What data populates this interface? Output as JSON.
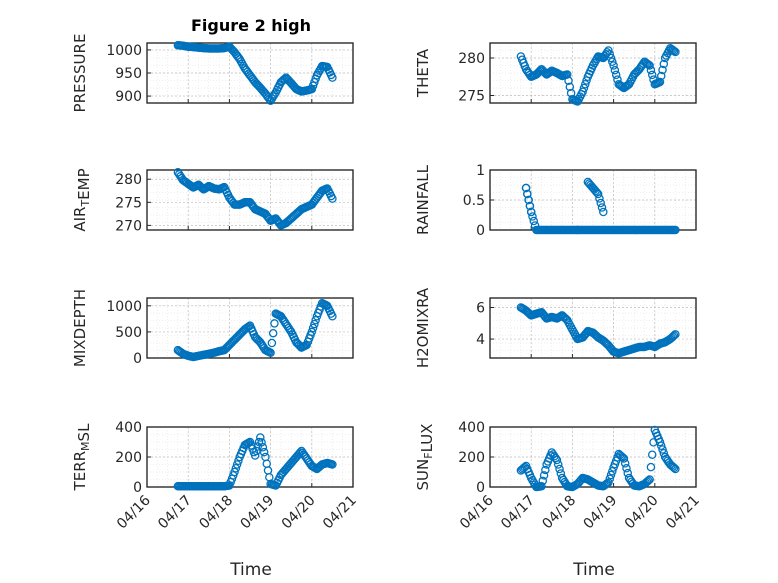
{
  "figure": {
    "title": "Figure 2 high",
    "marker_color": "#0072BD",
    "xlabel": "Time",
    "date_ticks": [
      "04/16",
      "04/17",
      "04/18",
      "04/19",
      "04/20",
      "04/21"
    ]
  },
  "chart_data": [
    {
      "type": "scatter",
      "ylabel": "PRESSURE",
      "ylim": [
        885,
        1015
      ],
      "yticks": [
        900,
        950,
        1000
      ],
      "xlim": [
        "04/16",
        "04/21"
      ],
      "grid": true,
      "x": [
        "2020-04-16T18:00",
        "2020-04-16T21:00",
        "2020-04-17T00:00",
        "2020-04-17T03:00",
        "2020-04-17T06:00",
        "2020-04-17T09:00",
        "2020-04-17T12:00",
        "2020-04-17T15:00",
        "2020-04-17T18:00",
        "2020-04-17T21:00",
        "2020-04-18T00:00",
        "2020-04-18T03:00",
        "2020-04-18T06:00",
        "2020-04-18T09:00",
        "2020-04-18T12:00",
        "2020-04-18T15:00",
        "2020-04-18T18:00",
        "2020-04-18T21:00",
        "2020-04-19T00:00",
        "2020-04-19T03:00",
        "2020-04-19T06:00",
        "2020-04-19T09:00",
        "2020-04-19T12:00",
        "2020-04-19T15:00",
        "2020-04-19T18:00",
        "2020-04-19T21:00",
        "2020-04-20T00:00",
        "2020-04-20T03:00",
        "2020-04-20T06:00",
        "2020-04-20T09:00",
        "2020-04-20T12:00"
      ],
      "y": [
        1010,
        1009,
        1007,
        1006,
        1005,
        1004,
        1003,
        1003,
        1003,
        1004,
        1007,
        995,
        980,
        960,
        945,
        930,
        918,
        905,
        890,
        908,
        930,
        940,
        928,
        915,
        910,
        912,
        915,
        945,
        965,
        963,
        940
      ]
    },
    {
      "type": "scatter",
      "ylabel": "THETA",
      "ylim": [
        274,
        282
      ],
      "yticks": [
        275,
        280
      ],
      "xlim": [
        "04/16",
        "04/21"
      ],
      "grid": true,
      "x": [
        "2020-04-16T18:00",
        "2020-04-16T21:00",
        "2020-04-17T00:00",
        "2020-04-17T03:00",
        "2020-04-17T06:00",
        "2020-04-17T09:00",
        "2020-04-17T12:00",
        "2020-04-17T15:00",
        "2020-04-17T18:00",
        "2020-04-17T21:00",
        "2020-04-18T00:00",
        "2020-04-18T03:00",
        "2020-04-18T06:00",
        "2020-04-18T09:00",
        "2020-04-18T12:00",
        "2020-04-18T15:00",
        "2020-04-18T18:00",
        "2020-04-18T21:00",
        "2020-04-19T00:00",
        "2020-04-19T03:00",
        "2020-04-19T06:00",
        "2020-04-19T09:00",
        "2020-04-19T12:00",
        "2020-04-19T15:00",
        "2020-04-19T18:00",
        "2020-04-19T21:00",
        "2020-04-20T00:00",
        "2020-04-20T03:00",
        "2020-04-20T06:00",
        "2020-04-20T09:00",
        "2020-04-20T12:00"
      ],
      "y": [
        280.2,
        278.5,
        277.5,
        277.8,
        278.5,
        277.8,
        278.3,
        278.0,
        277.6,
        277.8,
        274.5,
        274.2,
        275.5,
        277.5,
        279.0,
        280.2,
        280.0,
        281.0,
        279.0,
        276.5,
        276.0,
        276.5,
        277.8,
        278.5,
        279.5,
        279.0,
        276.5,
        276.8,
        280.0,
        281.3,
        280.8
      ]
    },
    {
      "type": "scatter",
      "ylabel": "AIR_T_EMP",
      "ylim": [
        269,
        282
      ],
      "yticks": [
        270,
        275,
        280
      ],
      "xlim": [
        "04/16",
        "04/21"
      ],
      "grid": true,
      "x": [
        "2020-04-16T18:00",
        "2020-04-16T21:00",
        "2020-04-17T00:00",
        "2020-04-17T03:00",
        "2020-04-17T06:00",
        "2020-04-17T09:00",
        "2020-04-17T12:00",
        "2020-04-17T15:00",
        "2020-04-17T18:00",
        "2020-04-17T21:00",
        "2020-04-18T00:00",
        "2020-04-18T03:00",
        "2020-04-18T06:00",
        "2020-04-18T09:00",
        "2020-04-18T12:00",
        "2020-04-18T15:00",
        "2020-04-18T18:00",
        "2020-04-18T21:00",
        "2020-04-19T00:00",
        "2020-04-19T03:00",
        "2020-04-19T06:00",
        "2020-04-19T09:00",
        "2020-04-19T12:00",
        "2020-04-19T15:00",
        "2020-04-19T18:00",
        "2020-04-19T21:00",
        "2020-04-20T00:00",
        "2020-04-20T03:00",
        "2020-04-20T06:00",
        "2020-04-20T09:00",
        "2020-04-20T12:00"
      ],
      "y": [
        281.5,
        279.8,
        279.0,
        278.2,
        278.8,
        277.8,
        278.5,
        278.0,
        277.8,
        278.3,
        276.0,
        274.5,
        274.5,
        275.0,
        275.0,
        273.5,
        273.0,
        272.5,
        271.0,
        271.5,
        270.0,
        270.5,
        271.5,
        272.5,
        273.5,
        274.0,
        274.5,
        276.0,
        277.5,
        278.0,
        275.8
      ]
    },
    {
      "type": "scatter",
      "ylabel": "RAINFALL",
      "ylim": [
        0,
        1
      ],
      "yticks": [
        0,
        0.5,
        1
      ],
      "xlim": [
        "04/16",
        "04/21"
      ],
      "grid": true,
      "x": [
        "2020-04-16T21:00",
        "2020-04-17T00:00",
        "2020-04-17T03:00",
        "2020-04-17T06:00",
        "2020-04-17T09:00",
        "2020-04-17T12:00",
        "2020-04-17T15:00",
        "2020-04-17T18:00",
        "2020-04-17T21:00",
        "2020-04-18T00:00",
        "2020-04-18T03:00",
        "2020-04-18T06:00",
        "2020-04-18T09:00",
        "2020-04-18T12:00",
        "2020-04-18T15:00",
        "2020-04-18T18:00",
        "2020-04-18T21:00",
        "2020-04-19T00:00",
        "2020-04-19T03:00",
        "2020-04-19T06:00",
        "2020-04-19T09:00",
        "2020-04-19T12:00",
        "2020-04-19T15:00",
        "2020-04-19T18:00",
        "2020-04-19T21:00",
        "2020-04-20T00:00",
        "2020-04-20T03:00",
        "2020-04-20T06:00",
        "2020-04-20T09:00",
        "2020-04-20T12:00",
        "2020-04-16T21:00",
        "2020-04-17T00:00",
        "2020-04-18T03:00",
        "2020-04-18T09:00",
        "2020-04-18T12:00",
        "2020-04-18T15:00",
        "2020-04-18T18:00"
      ],
      "y": [
        0.7,
        0.3,
        0,
        0,
        0,
        0,
        0,
        0,
        0,
        0,
        0,
        0,
        0,
        0,
        0,
        0,
        0,
        0,
        0,
        0,
        0,
        0,
        0,
        0,
        0,
        0,
        0,
        0,
        0,
        0,
        0.7,
        0.3,
        0,
        0.8,
        0.7,
        0.6,
        0.3
      ]
    },
    {
      "type": "scatter",
      "ylabel": "MIXDEPTH",
      "ylim": [
        0,
        1150
      ],
      "yticks": [
        0,
        500,
        1000
      ],
      "xlim": [
        "04/16",
        "04/21"
      ],
      "grid": true,
      "x": [
        "2020-04-16T18:00",
        "2020-04-16T21:00",
        "2020-04-17T00:00",
        "2020-04-17T03:00",
        "2020-04-17T06:00",
        "2020-04-17T09:00",
        "2020-04-17T12:00",
        "2020-04-17T15:00",
        "2020-04-17T18:00",
        "2020-04-17T21:00",
        "2020-04-18T00:00",
        "2020-04-18T03:00",
        "2020-04-18T06:00",
        "2020-04-18T09:00",
        "2020-04-18T12:00",
        "2020-04-18T15:00",
        "2020-04-18T18:00",
        "2020-04-18T21:00",
        "2020-04-19T00:00",
        "2020-04-19T03:00",
        "2020-04-19T06:00",
        "2020-04-19T09:00",
        "2020-04-19T12:00",
        "2020-04-19T15:00",
        "2020-04-19T18:00",
        "2020-04-19T21:00",
        "2020-04-20T00:00",
        "2020-04-20T03:00",
        "2020-04-20T06:00",
        "2020-04-20T09:00",
        "2020-04-20T12:00"
      ],
      "y": [
        150,
        80,
        40,
        20,
        40,
        60,
        80,
        100,
        130,
        150,
        250,
        350,
        450,
        550,
        620,
        400,
        300,
        150,
        100,
        850,
        800,
        650,
        500,
        300,
        200,
        250,
        500,
        800,
        1050,
        1000,
        800
      ]
    },
    {
      "type": "scatter",
      "ylabel": "H2OMIXRA",
      "ylim": [
        2.8,
        6.6
      ],
      "yticks": [
        4,
        6
      ],
      "xlim": [
        "04/16",
        "04/21"
      ],
      "grid": true,
      "x": [
        "2020-04-16T18:00",
        "2020-04-16T21:00",
        "2020-04-17T00:00",
        "2020-04-17T03:00",
        "2020-04-17T06:00",
        "2020-04-17T09:00",
        "2020-04-17T12:00",
        "2020-04-17T15:00",
        "2020-04-17T18:00",
        "2020-04-17T21:00",
        "2020-04-18T00:00",
        "2020-04-18T03:00",
        "2020-04-18T06:00",
        "2020-04-18T09:00",
        "2020-04-18T12:00",
        "2020-04-18T15:00",
        "2020-04-18T18:00",
        "2020-04-18T21:00",
        "2020-04-19T00:00",
        "2020-04-19T03:00",
        "2020-04-19T06:00",
        "2020-04-19T09:00",
        "2020-04-19T12:00",
        "2020-04-19T15:00",
        "2020-04-19T18:00",
        "2020-04-19T21:00",
        "2020-04-20T00:00",
        "2020-04-20T03:00",
        "2020-04-20T06:00",
        "2020-04-20T09:00",
        "2020-04-20T12:00"
      ],
      "y": [
        6.0,
        5.8,
        5.5,
        5.6,
        5.7,
        5.3,
        5.4,
        5.3,
        5.5,
        5.2,
        4.6,
        4.0,
        4.1,
        4.5,
        4.4,
        4.1,
        3.9,
        3.6,
        3.2,
        3.1,
        3.2,
        3.3,
        3.4,
        3.5,
        3.5,
        3.6,
        3.5,
        3.7,
        3.8,
        4.0,
        4.3
      ]
    },
    {
      "type": "scatter",
      "ylabel": "TERR_M_SL",
      "ylim": [
        0,
        400
      ],
      "yticks": [
        0,
        200,
        400
      ],
      "xlim": [
        "04/16",
        "04/21"
      ],
      "xlabel": "Time",
      "grid": true,
      "x": [
        "2020-04-16T18:00",
        "2020-04-16T21:00",
        "2020-04-17T00:00",
        "2020-04-17T03:00",
        "2020-04-17T06:00",
        "2020-04-17T09:00",
        "2020-04-17T12:00",
        "2020-04-17T15:00",
        "2020-04-17T18:00",
        "2020-04-17T21:00",
        "2020-04-18T00:00",
        "2020-04-18T03:00",
        "2020-04-18T06:00",
        "2020-04-18T09:00",
        "2020-04-18T12:00",
        "2020-04-18T15:00",
        "2020-04-18T18:00",
        "2020-04-18T21:00",
        "2020-04-19T00:00",
        "2020-04-19T03:00",
        "2020-04-19T06:00",
        "2020-04-19T09:00",
        "2020-04-19T12:00",
        "2020-04-19T15:00",
        "2020-04-19T18:00",
        "2020-04-19T21:00",
        "2020-04-20T00:00",
        "2020-04-20T03:00",
        "2020-04-20T06:00",
        "2020-04-20T09:00",
        "2020-04-20T12:00"
      ],
      "y": [
        5,
        5,
        5,
        5,
        5,
        5,
        5,
        5,
        5,
        5,
        10,
        100,
        200,
        280,
        300,
        210,
        330,
        200,
        20,
        10,
        80,
        120,
        160,
        200,
        240,
        190,
        140,
        120,
        150,
        160,
        150
      ]
    },
    {
      "type": "scatter",
      "ylabel": "SUN_F_LUX",
      "ylim": [
        0,
        400
      ],
      "yticks": [
        0,
        200,
        400
      ],
      "xlim": [
        "04/16",
        "04/21"
      ],
      "xlabel": "Time",
      "grid": true,
      "x": [
        "2020-04-16T18:00",
        "2020-04-16T21:00",
        "2020-04-17T00:00",
        "2020-04-17T03:00",
        "2020-04-17T06:00",
        "2020-04-17T09:00",
        "2020-04-17T12:00",
        "2020-04-17T15:00",
        "2020-04-17T18:00",
        "2020-04-17T21:00",
        "2020-04-18T00:00",
        "2020-04-18T03:00",
        "2020-04-18T06:00",
        "2020-04-18T09:00",
        "2020-04-18T12:00",
        "2020-04-18T15:00",
        "2020-04-18T18:00",
        "2020-04-18T21:00",
        "2020-04-19T00:00",
        "2020-04-19T03:00",
        "2020-04-19T06:00",
        "2020-04-19T09:00",
        "2020-04-19T12:00",
        "2020-04-19T15:00",
        "2020-04-19T18:00",
        "2020-04-19T21:00",
        "2020-04-20T00:00",
        "2020-04-20T03:00",
        "2020-04-20T06:00",
        "2020-04-20T09:00",
        "2020-04-20T12:00"
      ],
      "y": [
        110,
        140,
        60,
        0,
        5,
        150,
        230,
        180,
        60,
        5,
        0,
        20,
        60,
        50,
        30,
        10,
        5,
        30,
        130,
        220,
        190,
        60,
        10,
        5,
        20,
        50,
        380,
        300,
        200,
        150,
        120
      ]
    }
  ]
}
